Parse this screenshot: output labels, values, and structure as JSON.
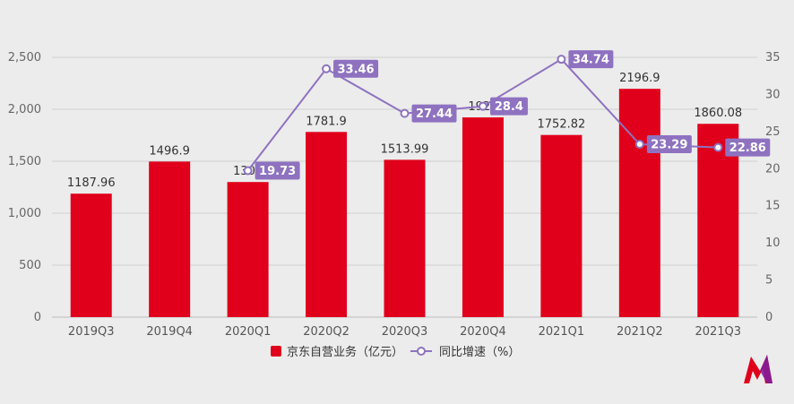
{
  "chart_data": {
    "type": "bar",
    "categories": [
      "2019Q3",
      "2019Q4",
      "2020Q1",
      "2020Q2",
      "2020Q3",
      "2020Q4",
      "2021Q1",
      "2021Q2",
      "2021Q3"
    ],
    "series": [
      {
        "name": "京东自营业务（亿元）",
        "type": "bar",
        "axis": "left",
        "color": "#e0001b",
        "values": [
          1187.96,
          1496.9,
          1300,
          1781.9,
          1513.99,
          1922,
          1752.82,
          2196.9,
          1860.08
        ],
        "labels": [
          "1187.96",
          "1496.9",
          "1300",
          "1781.9",
          "1513.99",
          "1922",
          "1752.82",
          "2196.9",
          "1860.08"
        ]
      },
      {
        "name": "同比增速（%）",
        "type": "line",
        "axis": "right",
        "color": "#8e72c0",
        "values": [
          null,
          null,
          19.73,
          33.46,
          27.44,
          28.4,
          34.74,
          23.29,
          22.86
        ],
        "labels": [
          "",
          "",
          "19.73",
          "33.46",
          "27.44",
          "28.4",
          "34.74",
          "23.29",
          "22.86"
        ]
      }
    ],
    "y_left": {
      "min": 0,
      "max": 2500,
      "ticks": [
        "0",
        "500",
        "1,000",
        "1,500",
        "2,000",
        "2,500"
      ],
      "tick_values": [
        0,
        500,
        1000,
        1500,
        2000,
        2500
      ]
    },
    "y_right": {
      "min": 0,
      "max": 35,
      "ticks": [
        "0",
        "5",
        "10",
        "15",
        "20",
        "25",
        "30",
        "35"
      ],
      "tick_values": [
        0,
        5,
        10,
        15,
        20,
        25,
        30,
        35
      ]
    },
    "grid": true,
    "legend_position": "bottom"
  },
  "logo": {
    "name": "m-logo-icon",
    "colors": [
      "#e0001b",
      "#6a1b9a"
    ]
  }
}
